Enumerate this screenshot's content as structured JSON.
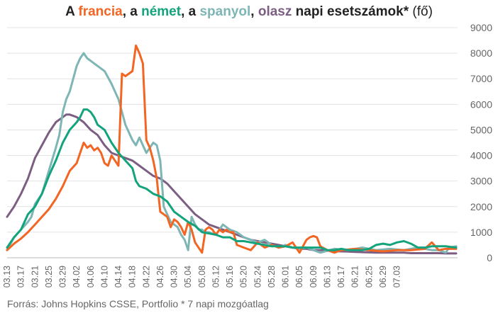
{
  "title": {
    "p1": "A ",
    "fr": "francia",
    "p2": ", a ",
    "de": "német",
    "p3": ", a ",
    "es": "spanyol",
    "p4": ", ",
    "it": "olasz",
    "p5": " napi esetszámok*",
    "unit": " (fő)"
  },
  "source": "Forrás: Johns Hopkins CSSE, Portfolio  * 7 napi mozgóatlag",
  "chart_data": {
    "type": "line",
    "title": "A francia, a német, a spanyol, olasz napi esetszámok* (fő)",
    "x_tick_labels": [
      "03.13",
      "03.17",
      "03.21",
      "03.25",
      "03.29",
      "04.02",
      "04.06",
      "04.10",
      "04.14",
      "04.18",
      "04.22",
      "04.26",
      "04.30",
      "05.04",
      "05.08",
      "05.12",
      "05.16",
      "05.20",
      "05.24",
      "05.28",
      "06.01",
      "06.05",
      "06.09",
      "06.13",
      "06.17",
      "06.21",
      "06.25",
      "06.29",
      "07.03"
    ],
    "y_ticks": [
      0,
      1000,
      2000,
      3000,
      4000,
      5000,
      6000,
      7000,
      8000,
      9000
    ],
    "ylim": [
      0,
      9000
    ],
    "x_range_days": [
      0,
      129
    ],
    "grid": "horizontal",
    "series": [
      {
        "name": "francia",
        "color": "#f26522",
        "points": [
          [
            0,
            300
          ],
          [
            2,
            550
          ],
          [
            4,
            750
          ],
          [
            6,
            1000
          ],
          [
            8,
            1300
          ],
          [
            10,
            1600
          ],
          [
            12,
            1900
          ],
          [
            14,
            2300
          ],
          [
            16,
            2800
          ],
          [
            18,
            3400
          ],
          [
            20,
            3700
          ],
          [
            21,
            4100
          ],
          [
            22,
            4500
          ],
          [
            23,
            4300
          ],
          [
            24,
            4400
          ],
          [
            25,
            4200
          ],
          [
            26,
            4300
          ],
          [
            27,
            4100
          ],
          [
            28,
            3700
          ],
          [
            29,
            3600
          ],
          [
            30,
            4000
          ],
          [
            31,
            3800
          ],
          [
            32,
            3600
          ],
          [
            33,
            7200
          ],
          [
            34,
            7100
          ],
          [
            35,
            7200
          ],
          [
            36,
            7300
          ],
          [
            37,
            8300
          ],
          [
            38,
            8000
          ],
          [
            39,
            7600
          ],
          [
            40,
            4600
          ],
          [
            41,
            4300
          ],
          [
            42,
            3800
          ],
          [
            43,
            3100
          ],
          [
            44,
            1800
          ],
          [
            45,
            1700
          ],
          [
            46,
            1600
          ],
          [
            47,
            1200
          ],
          [
            48,
            1500
          ],
          [
            49,
            1400
          ],
          [
            50,
            1200
          ],
          [
            51,
            900
          ],
          [
            52,
            1400
          ],
          [
            53,
            1100
          ],
          [
            54,
            600
          ],
          [
            55,
            400
          ],
          [
            56,
            200
          ],
          [
            57,
            1100
          ],
          [
            58,
            1200
          ],
          [
            59,
            1100
          ],
          [
            60,
            900
          ],
          [
            61,
            1100
          ],
          [
            62,
            1000
          ],
          [
            63,
            1100
          ],
          [
            64,
            1000
          ],
          [
            65,
            1000
          ],
          [
            66,
            500
          ],
          [
            68,
            400
          ],
          [
            70,
            300
          ],
          [
            72,
            600
          ],
          [
            74,
            400
          ],
          [
            76,
            500
          ],
          [
            78,
            400
          ],
          [
            80,
            450
          ],
          [
            82,
            600
          ],
          [
            84,
            200
          ],
          [
            86,
            700
          ],
          [
            87,
            800
          ],
          [
            88,
            850
          ],
          [
            89,
            800
          ],
          [
            90,
            450
          ],
          [
            92,
            300
          ],
          [
            94,
            200
          ],
          [
            96,
            300
          ],
          [
            100,
            350
          ],
          [
            104,
            300
          ],
          [
            108,
            250
          ],
          [
            112,
            300
          ],
          [
            116,
            300
          ],
          [
            120,
            350
          ],
          [
            122,
            600
          ],
          [
            124,
            300
          ],
          [
            126,
            350
          ],
          [
            129,
            350
          ]
        ]
      },
      {
        "name": "német",
        "color": "#13a37d",
        "points": [
          [
            0,
            400
          ],
          [
            2,
            800
          ],
          [
            4,
            1100
          ],
          [
            6,
            1700
          ],
          [
            8,
            2000
          ],
          [
            10,
            2500
          ],
          [
            12,
            3200
          ],
          [
            14,
            3800
          ],
          [
            16,
            4500
          ],
          [
            18,
            5000
          ],
          [
            20,
            5300
          ],
          [
            21,
            5500
          ],
          [
            22,
            5800
          ],
          [
            23,
            5800
          ],
          [
            24,
            5700
          ],
          [
            25,
            5500
          ],
          [
            26,
            5200
          ],
          [
            28,
            5000
          ],
          [
            30,
            4500
          ],
          [
            32,
            4100
          ],
          [
            34,
            3800
          ],
          [
            36,
            3500
          ],
          [
            37,
            3000
          ],
          [
            38,
            2800
          ],
          [
            40,
            2700
          ],
          [
            42,
            2500
          ],
          [
            44,
            2400
          ],
          [
            46,
            2200
          ],
          [
            48,
            1800
          ],
          [
            50,
            1600
          ],
          [
            52,
            1400
          ],
          [
            54,
            1250
          ],
          [
            56,
            1000
          ],
          [
            58,
            950
          ],
          [
            60,
            900
          ],
          [
            62,
            800
          ],
          [
            64,
            800
          ],
          [
            66,
            650
          ],
          [
            68,
            650
          ],
          [
            70,
            600
          ],
          [
            72,
            550
          ],
          [
            74,
            500
          ],
          [
            76,
            450
          ],
          [
            78,
            450
          ],
          [
            80,
            450
          ],
          [
            82,
            400
          ],
          [
            84,
            400
          ],
          [
            86,
            400
          ],
          [
            88,
            400
          ],
          [
            90,
            400
          ],
          [
            92,
            300
          ],
          [
            94,
            300
          ],
          [
            96,
            350
          ],
          [
            98,
            300
          ],
          [
            100,
            300
          ],
          [
            102,
            300
          ],
          [
            104,
            350
          ],
          [
            106,
            500
          ],
          [
            108,
            550
          ],
          [
            110,
            500
          ],
          [
            112,
            600
          ],
          [
            114,
            650
          ],
          [
            116,
            550
          ],
          [
            118,
            400
          ],
          [
            120,
            400
          ],
          [
            122,
            450
          ],
          [
            124,
            450
          ],
          [
            126,
            450
          ],
          [
            129,
            400
          ]
        ]
      },
      {
        "name": "spanyol",
        "color": "#7eb5b5",
        "points": [
          [
            0,
            300
          ],
          [
            2,
            800
          ],
          [
            4,
            1100
          ],
          [
            6,
            1400
          ],
          [
            7,
            1600
          ],
          [
            8,
            2100
          ],
          [
            10,
            2500
          ],
          [
            12,
            3400
          ],
          [
            14,
            4300
          ],
          [
            15,
            4800
          ],
          [
            16,
            5700
          ],
          [
            17,
            6200
          ],
          [
            18,
            6500
          ],
          [
            19,
            7000
          ],
          [
            20,
            7500
          ],
          [
            21,
            7800
          ],
          [
            22,
            8000
          ],
          [
            23,
            7800
          ],
          [
            24,
            7700
          ],
          [
            25,
            7600
          ],
          [
            26,
            7500
          ],
          [
            28,
            7300
          ],
          [
            30,
            6800
          ],
          [
            32,
            6200
          ],
          [
            34,
            5200
          ],
          [
            36,
            4600
          ],
          [
            37,
            4400
          ],
          [
            38,
            4700
          ],
          [
            39,
            4400
          ],
          [
            40,
            4100
          ],
          [
            41,
            4300
          ],
          [
            42,
            4500
          ],
          [
            43,
            4400
          ],
          [
            44,
            3800
          ],
          [
            45,
            2000
          ],
          [
            46,
            1700
          ],
          [
            47,
            1400
          ],
          [
            48,
            1300
          ],
          [
            49,
            1200
          ],
          [
            50,
            900
          ],
          [
            51,
            700
          ],
          [
            52,
            300
          ],
          [
            53,
            1600
          ],
          [
            54,
            1300
          ],
          [
            55,
            1100
          ],
          [
            56,
            1100
          ],
          [
            57,
            1000
          ],
          [
            58,
            1000
          ],
          [
            60,
            900
          ],
          [
            62,
            1300
          ],
          [
            64,
            1100
          ],
          [
            66,
            1000
          ],
          [
            68,
            800
          ],
          [
            70,
            700
          ],
          [
            72,
            600
          ],
          [
            74,
            700
          ],
          [
            76,
            500
          ],
          [
            78,
            400
          ],
          [
            80,
            500
          ],
          [
            82,
            400
          ],
          [
            84,
            350
          ],
          [
            86,
            400
          ],
          [
            88,
            300
          ],
          [
            90,
            200
          ],
          [
            94,
            350
          ],
          [
            98,
            300
          ],
          [
            102,
            400
          ],
          [
            106,
            300
          ],
          [
            110,
            350
          ],
          [
            114,
            300
          ],
          [
            118,
            400
          ],
          [
            122,
            300
          ],
          [
            124,
            300
          ],
          [
            126,
            200
          ],
          [
            127,
            400
          ],
          [
            129,
            450
          ]
        ]
      },
      {
        "name": "olasz",
        "color": "#7d5e83",
        "points": [
          [
            0,
            1600
          ],
          [
            2,
            2000
          ],
          [
            4,
            2500
          ],
          [
            6,
            3100
          ],
          [
            8,
            3900
          ],
          [
            10,
            4400
          ],
          [
            12,
            4900
          ],
          [
            14,
            5300
          ],
          [
            16,
            5500
          ],
          [
            17,
            5600
          ],
          [
            18,
            5600
          ],
          [
            20,
            5500
          ],
          [
            22,
            5300
          ],
          [
            24,
            5000
          ],
          [
            26,
            4800
          ],
          [
            28,
            4400
          ],
          [
            30,
            4100
          ],
          [
            32,
            4000
          ],
          [
            34,
            3900
          ],
          [
            36,
            3800
          ],
          [
            38,
            3600
          ],
          [
            40,
            3400
          ],
          [
            42,
            3200
          ],
          [
            44,
            3100
          ],
          [
            46,
            2900
          ],
          [
            48,
            2600
          ],
          [
            50,
            2300
          ],
          [
            52,
            2000
          ],
          [
            54,
            1700
          ],
          [
            56,
            1500
          ],
          [
            58,
            1300
          ],
          [
            60,
            1200
          ],
          [
            62,
            1100
          ],
          [
            64,
            1000
          ],
          [
            66,
            900
          ],
          [
            68,
            800
          ],
          [
            70,
            700
          ],
          [
            72,
            650
          ],
          [
            74,
            600
          ],
          [
            76,
            550
          ],
          [
            78,
            500
          ],
          [
            80,
            450
          ],
          [
            82,
            400
          ],
          [
            84,
            350
          ],
          [
            86,
            350
          ],
          [
            88,
            300
          ],
          [
            90,
            300
          ],
          [
            92,
            280
          ],
          [
            94,
            260
          ],
          [
            96,
            250
          ],
          [
            98,
            240
          ],
          [
            100,
            230
          ],
          [
            102,
            220
          ],
          [
            104,
            210
          ],
          [
            106,
            200
          ],
          [
            108,
            200
          ],
          [
            110,
            200
          ],
          [
            112,
            200
          ],
          [
            114,
            200
          ],
          [
            116,
            180
          ],
          [
            118,
            180
          ],
          [
            120,
            180
          ],
          [
            122,
            180
          ],
          [
            124,
            180
          ],
          [
            126,
            170
          ],
          [
            129,
            170
          ]
        ]
      }
    ]
  }
}
